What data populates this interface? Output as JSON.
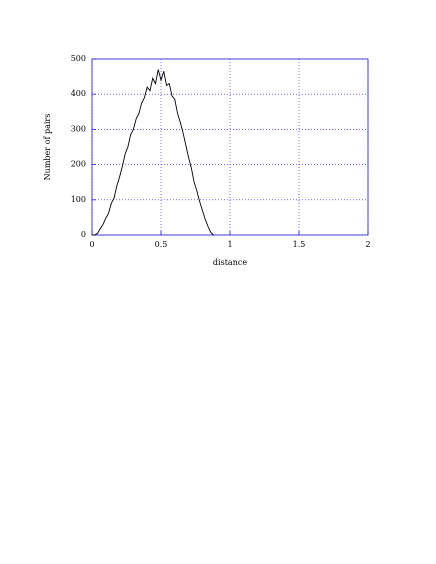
{
  "chart_data": {
    "type": "line",
    "xlabel": "distance",
    "ylabel": "Number of pairs",
    "x": [
      0,
      0.02,
      0.04,
      0.06,
      0.08,
      0.1,
      0.12,
      0.14,
      0.16,
      0.18,
      0.2,
      0.22,
      0.24,
      0.26,
      0.28,
      0.3,
      0.32,
      0.34,
      0.36,
      0.38,
      0.4,
      0.42,
      0.44,
      0.46,
      0.48,
      0.5,
      0.52,
      0.54,
      0.56,
      0.58,
      0.6,
      0.62,
      0.64,
      0.66,
      0.68,
      0.7,
      0.72,
      0.74,
      0.76,
      0.78,
      0.8,
      0.82,
      0.84,
      0.86,
      0.88
    ],
    "values": [
      0,
      0,
      5,
      18,
      30,
      48,
      62,
      90,
      105,
      140,
      165,
      195,
      230,
      250,
      285,
      300,
      330,
      345,
      375,
      390,
      420,
      410,
      445,
      430,
      470,
      440,
      465,
      425,
      430,
      395,
      385,
      345,
      320,
      290,
      255,
      220,
      190,
      150,
      125,
      95,
      70,
      45,
      25,
      8,
      0
    ],
    "color": "#000000",
    "xlim": [
      0,
      2
    ],
    "xticks": [
      0,
      0.5,
      1,
      1.5,
      2
    ],
    "ylim": [
      0,
      500
    ],
    "yticks": [
      0,
      100,
      200,
      300,
      400,
      500
    ],
    "grid": true
  }
}
